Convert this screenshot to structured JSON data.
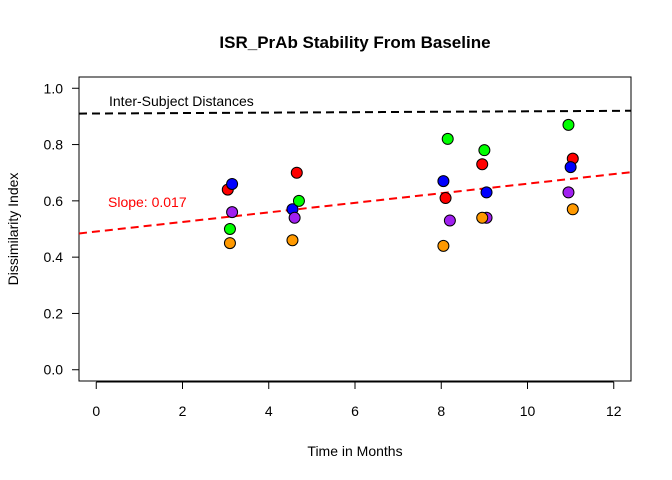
{
  "chart_data": {
    "type": "scatter",
    "title": "ISR_PrAb Stability From Baseline",
    "xlabel": "Time in Months",
    "ylabel": "Dissimilarity Index",
    "xlim": [
      -0.4,
      12.4
    ],
    "ylim": [
      -0.04,
      1.04
    ],
    "xticks": [
      0,
      2,
      4,
      6,
      8,
      10,
      12
    ],
    "yticks": [
      0.0,
      0.2,
      0.4,
      0.6,
      0.8,
      1.0
    ],
    "xtick_labels": [
      "0",
      "2",
      "4",
      "6",
      "8",
      "10",
      "12"
    ],
    "ytick_labels": [
      "0.0",
      "0.2",
      "0.4",
      "0.6",
      "0.8",
      "1.0"
    ],
    "grid": false,
    "series": [
      {
        "color": "#ff0000",
        "points": [
          [
            3.05,
            0.64
          ],
          [
            4.65,
            0.7
          ],
          [
            8.1,
            0.61
          ],
          [
            8.95,
            0.73
          ],
          [
            11.05,
            0.75
          ]
        ]
      },
      {
        "color": "#0000ff",
        "points": [
          [
            3.15,
            0.66
          ],
          [
            4.55,
            0.57
          ],
          [
            8.05,
            0.67
          ],
          [
            9.05,
            0.63
          ],
          [
            11.0,
            0.72
          ]
        ]
      },
      {
        "color": "#00ff00",
        "points": [
          [
            3.1,
            0.5
          ],
          [
            4.7,
            0.6
          ],
          [
            8.15,
            0.82
          ],
          [
            9.0,
            0.78
          ],
          [
            10.95,
            0.87
          ]
        ]
      },
      {
        "color": "#a020f0",
        "points": [
          [
            3.15,
            0.56
          ],
          [
            4.6,
            0.54
          ],
          [
            8.2,
            0.53
          ],
          [
            9.05,
            0.54
          ],
          [
            10.95,
            0.63
          ]
        ]
      },
      {
        "color": "#ff9900",
        "points": [
          [
            3.1,
            0.45
          ],
          [
            4.55,
            0.46
          ],
          [
            8.05,
            0.44
          ],
          [
            8.95,
            0.54
          ],
          [
            11.05,
            0.57
          ]
        ]
      }
    ],
    "reference_line": {
      "label": "Inter-Subject Distances",
      "y0": 0.91,
      "y1": 0.92,
      "color": "#000000",
      "style": "dashed"
    },
    "regression_line": {
      "label": "Slope: 0.017",
      "intercept": 0.491,
      "slope": 0.017,
      "color": "#ff0000",
      "style": "dashed"
    }
  }
}
